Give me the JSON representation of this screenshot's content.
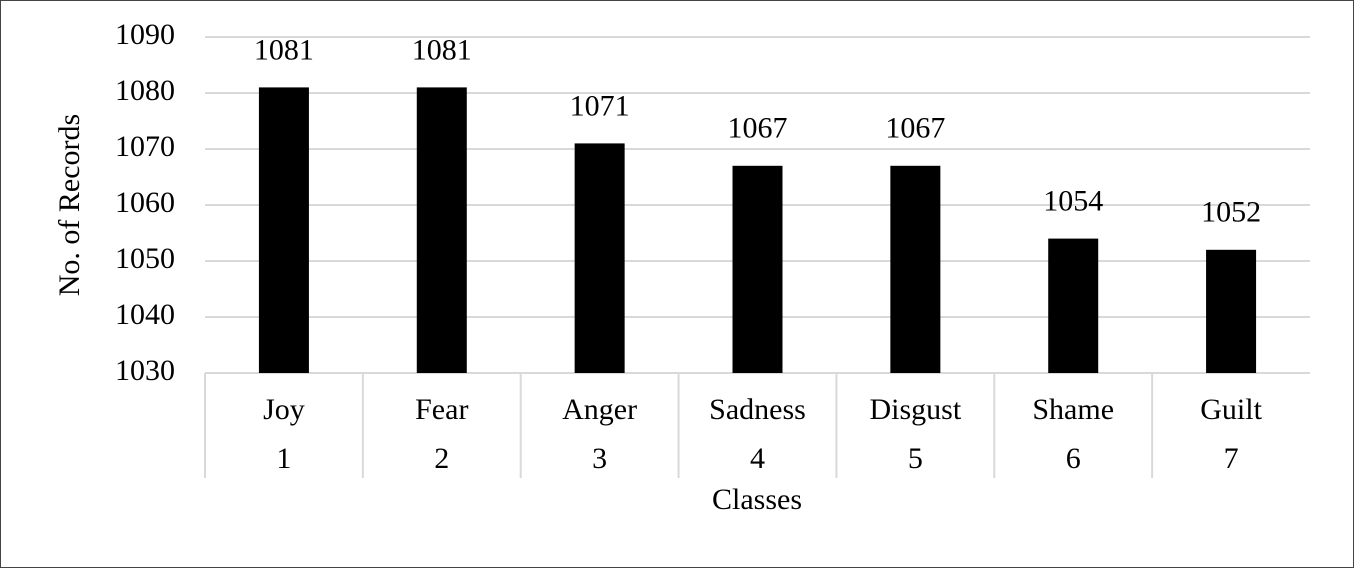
{
  "chart_data": {
    "type": "bar",
    "categories": [
      "Joy",
      "Fear",
      "Anger",
      "Sadness",
      "Disgust",
      "Shame",
      "Guilt"
    ],
    "category_numbers": [
      1,
      2,
      3,
      4,
      5,
      6,
      7
    ],
    "values": [
      1081,
      1081,
      1071,
      1067,
      1067,
      1054,
      1052
    ],
    "color": "#000000",
    "x_label": "Classes",
    "y_label": "No. of Records",
    "ylim": [
      1030,
      1090
    ],
    "yticks": [
      1030,
      1040,
      1050,
      1060,
      1070,
      1080,
      1090
    ],
    "grid": true
  }
}
